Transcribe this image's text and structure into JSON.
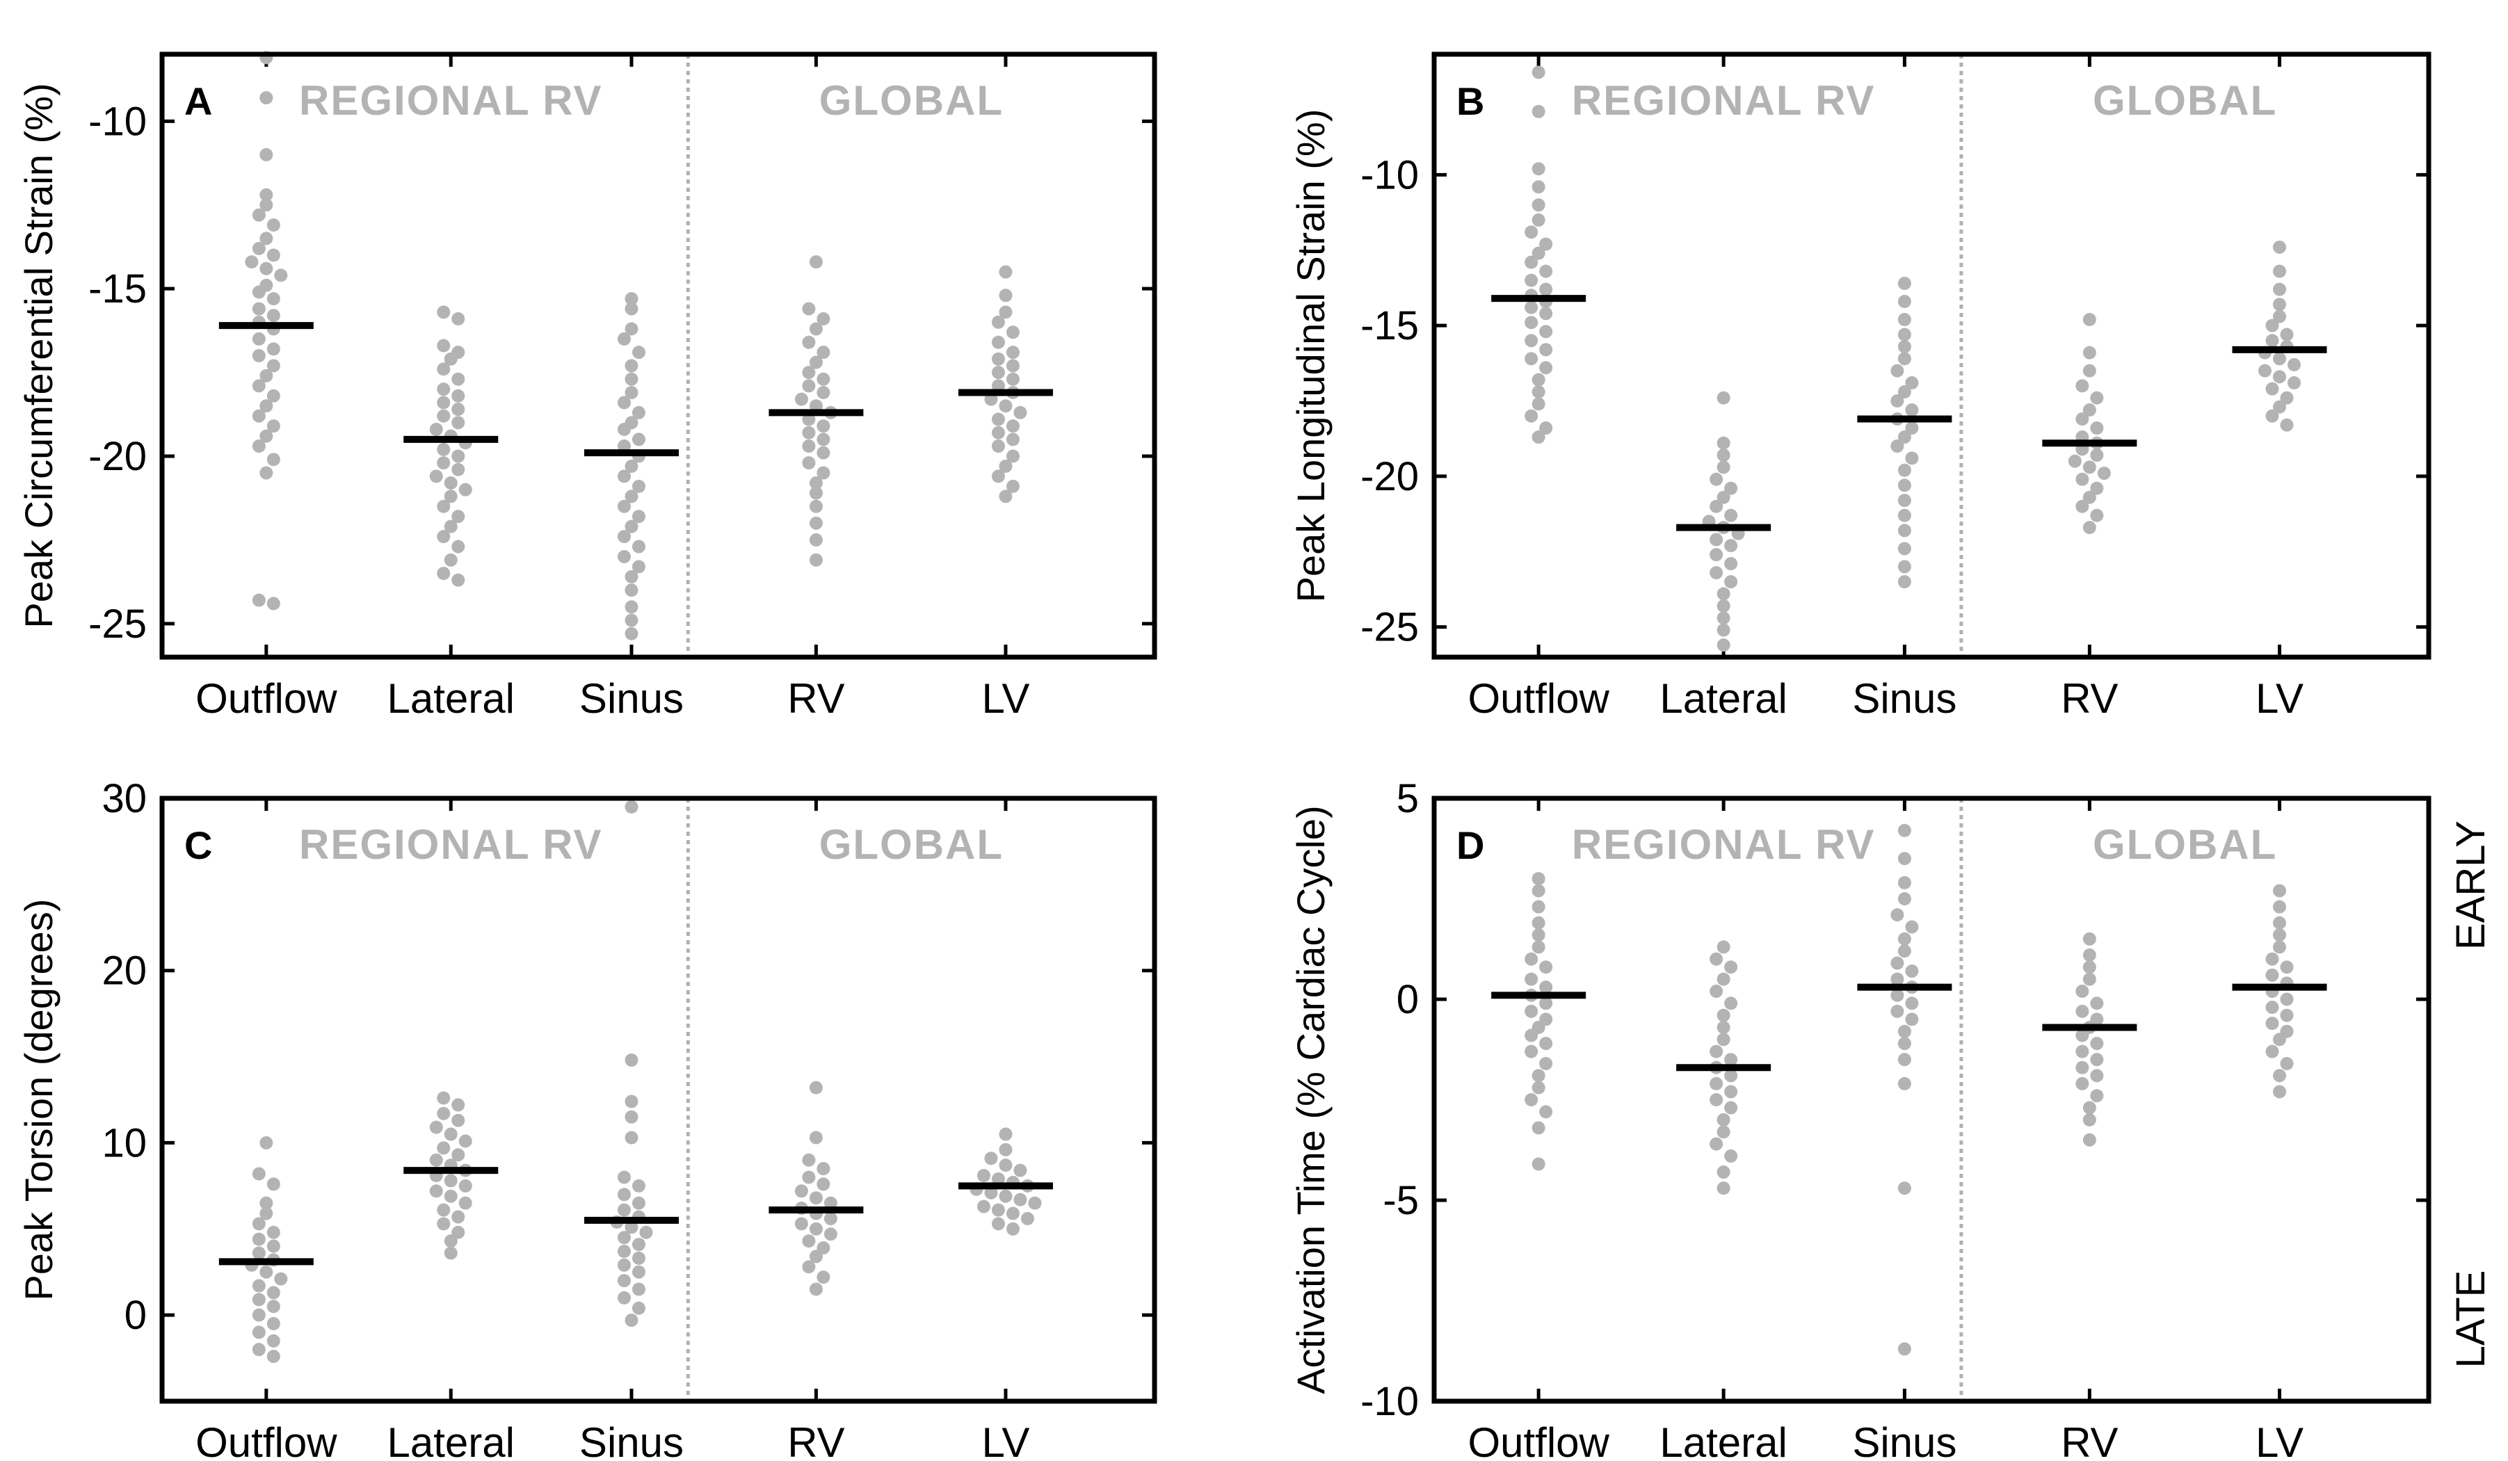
{
  "chart_data": [
    {
      "type": "scatter",
      "panel": "A",
      "ylabel": "Peak Circumferential Strain (%)",
      "ylim": [
        -26,
        -8
      ],
      "yticks": [
        -25,
        -20,
        -15,
        -10
      ],
      "region_labels": [
        "REGIONAL RV",
        "GLOBAL"
      ],
      "categories": [
        "Outflow",
        "Lateral",
        "Sinus",
        "RV",
        "LV"
      ],
      "medians": [
        -16.1,
        -19.5,
        -19.9,
        -18.7,
        -18.1
      ],
      "series": [
        {
          "name": "Outflow",
          "values": [
            -8.1,
            -9.3,
            -11.0,
            -12.2,
            -12.5,
            -12.8,
            -13.1,
            -13.5,
            -13.8,
            -14.0,
            -14.2,
            -14.4,
            -14.6,
            -14.9,
            -15.1,
            -15.3,
            -15.6,
            -15.8,
            -16.0,
            -16.2,
            -16.5,
            -16.8,
            -17.0,
            -17.3,
            -17.6,
            -17.9,
            -18.2,
            -18.5,
            -18.8,
            -19.1,
            -19.4,
            -19.7,
            -20.1,
            -20.5,
            -24.3,
            -24.4
          ]
        },
        {
          "name": "Lateral",
          "values": [
            -15.7,
            -15.9,
            -16.7,
            -16.9,
            -17.1,
            -17.4,
            -17.7,
            -18.0,
            -18.2,
            -18.4,
            -18.6,
            -18.8,
            -19.0,
            -19.2,
            -19.4,
            -19.6,
            -19.8,
            -20.0,
            -20.2,
            -20.4,
            -20.6,
            -20.8,
            -21.0,
            -21.2,
            -21.5,
            -21.8,
            -22.1,
            -22.4,
            -22.7,
            -23.1,
            -23.5,
            -23.7
          ]
        },
        {
          "name": "Sinus",
          "values": [
            -15.3,
            -15.6,
            -16.2,
            -16.5,
            -16.9,
            -17.3,
            -17.7,
            -18.1,
            -18.4,
            -18.7,
            -19.0,
            -19.2,
            -19.5,
            -19.7,
            -20.0,
            -20.3,
            -20.6,
            -20.9,
            -21.2,
            -21.5,
            -21.8,
            -22.1,
            -22.4,
            -22.7,
            -23.0,
            -23.3,
            -23.6,
            -24.0,
            -24.5,
            -24.9,
            -25.3
          ]
        },
        {
          "name": "RV",
          "values": [
            -14.2,
            -15.6,
            -15.9,
            -16.2,
            -16.6,
            -16.9,
            -17.2,
            -17.5,
            -17.7,
            -17.9,
            -18.1,
            -18.3,
            -18.5,
            -18.7,
            -18.9,
            -19.1,
            -19.3,
            -19.5,
            -19.7,
            -19.9,
            -20.2,
            -20.5,
            -20.8,
            -21.1,
            -21.5,
            -22.0,
            -22.5,
            -23.1
          ]
        },
        {
          "name": "LV",
          "values": [
            -14.5,
            -15.2,
            -15.7,
            -16.0,
            -16.3,
            -16.6,
            -16.9,
            -17.1,
            -17.3,
            -17.5,
            -17.7,
            -17.9,
            -18.1,
            -18.3,
            -18.5,
            -18.7,
            -18.9,
            -19.1,
            -19.3,
            -19.5,
            -19.7,
            -20.0,
            -20.3,
            -20.6,
            -20.9,
            -21.2
          ]
        }
      ]
    },
    {
      "type": "scatter",
      "panel": "B",
      "ylabel": "Peak Longitudinal Strain (%)",
      "ylim": [
        -26,
        -6
      ],
      "yticks": [
        -25,
        -20,
        -15,
        -10
      ],
      "region_labels": [
        "REGIONAL RV",
        "GLOBAL"
      ],
      "categories": [
        "Outflow",
        "Lateral",
        "Sinus",
        "RV",
        "LV"
      ],
      "medians": [
        -14.1,
        -21.7,
        -18.1,
        -18.9,
        -15.8
      ],
      "series": [
        {
          "name": "Outflow",
          "values": [
            -6.6,
            -7.9,
            -9.8,
            -10.4,
            -11.0,
            -11.5,
            -11.9,
            -12.3,
            -12.6,
            -12.9,
            -13.2,
            -13.5,
            -13.8,
            -14.0,
            -14.2,
            -14.4,
            -14.6,
            -14.9,
            -15.2,
            -15.5,
            -15.8,
            -16.1,
            -16.4,
            -16.8,
            -17.2,
            -17.6,
            -18.0,
            -18.4,
            -18.7
          ]
        },
        {
          "name": "Lateral",
          "values": [
            -17.4,
            -18.9,
            -19.3,
            -19.7,
            -20.1,
            -20.4,
            -20.7,
            -21.0,
            -21.3,
            -21.5,
            -21.7,
            -21.9,
            -22.1,
            -22.3,
            -22.6,
            -22.9,
            -23.2,
            -23.5,
            -23.9,
            -24.3,
            -24.7,
            -25.1,
            -25.6
          ]
        },
        {
          "name": "Sinus",
          "values": [
            -13.6,
            -14.2,
            -14.8,
            -15.3,
            -15.7,
            -16.1,
            -16.5,
            -16.9,
            -17.2,
            -17.5,
            -17.8,
            -18.1,
            -18.4,
            -18.7,
            -19.0,
            -19.4,
            -19.8,
            -20.3,
            -20.8,
            -21.3,
            -21.8,
            -22.4,
            -23.0,
            -23.5
          ]
        },
        {
          "name": "RV",
          "values": [
            -14.8,
            -15.9,
            -16.5,
            -17.0,
            -17.4,
            -17.8,
            -18.1,
            -18.4,
            -18.7,
            -18.9,
            -19.1,
            -19.3,
            -19.5,
            -19.7,
            -19.9,
            -20.1,
            -20.4,
            -20.7,
            -21.0,
            -21.3,
            -21.7
          ]
        },
        {
          "name": "LV",
          "values": [
            -12.4,
            -13.2,
            -13.8,
            -14.3,
            -14.7,
            -15.0,
            -15.3,
            -15.5,
            -15.7,
            -15.9,
            -16.1,
            -16.3,
            -16.5,
            -16.7,
            -16.9,
            -17.1,
            -17.4,
            -17.7,
            -18.0,
            -18.3
          ]
        }
      ]
    },
    {
      "type": "scatter",
      "panel": "C",
      "ylabel": "Peak Torsion (degrees)",
      "ylim": [
        -5,
        30
      ],
      "yticks": [
        0,
        10,
        20,
        30
      ],
      "region_labels": [
        "REGIONAL RV",
        "GLOBAL"
      ],
      "categories": [
        "Outflow",
        "Lateral",
        "Sinus",
        "RV",
        "LV"
      ],
      "medians": [
        3.1,
        8.4,
        5.5,
        6.1,
        7.5
      ],
      "series": [
        {
          "name": "Outflow",
          "values": [
            10.0,
            8.2,
            7.6,
            6.5,
            5.9,
            5.3,
            4.8,
            4.4,
            4.0,
            3.6,
            3.2,
            2.9,
            2.5,
            2.1,
            1.7,
            1.3,
            0.9,
            0.5,
            0.0,
            -0.5,
            -1.0,
            -1.5,
            -2.0,
            -2.4
          ]
        },
        {
          "name": "Lateral",
          "values": [
            12.6,
            12.2,
            11.7,
            11.3,
            10.9,
            10.5,
            10.1,
            9.7,
            9.3,
            9.0,
            8.7,
            8.4,
            8.1,
            7.8,
            7.5,
            7.2,
            6.9,
            6.5,
            6.1,
            5.7,
            5.3,
            4.8,
            4.3,
            3.6
          ]
        },
        {
          "name": "Sinus",
          "values": [
            29.5,
            14.8,
            12.4,
            11.5,
            10.3,
            8.0,
            7.5,
            7.0,
            6.5,
            6.1,
            5.7,
            5.4,
            5.1,
            4.8,
            4.5,
            4.1,
            3.7,
            3.3,
            2.9,
            2.5,
            2.0,
            1.5,
            1.0,
            0.4,
            -0.3
          ]
        },
        {
          "name": "RV",
          "values": [
            13.2,
            10.3,
            9.0,
            8.5,
            8.0,
            7.6,
            7.2,
            6.8,
            6.5,
            6.2,
            5.9,
            5.6,
            5.3,
            5.0,
            4.7,
            4.3,
            3.9,
            3.4,
            2.8,
            2.2,
            1.5
          ]
        },
        {
          "name": "LV",
          "values": [
            10.5,
            9.6,
            9.1,
            8.7,
            8.4,
            8.1,
            7.9,
            7.7,
            7.5,
            7.3,
            7.1,
            6.9,
            6.7,
            6.5,
            6.3,
            6.1,
            5.9,
            5.6,
            5.3,
            5.0
          ]
        }
      ]
    },
    {
      "type": "scatter",
      "panel": "D",
      "ylabel": "Activation Time (% Cardiac Cycle)",
      "ylim": [
        -10,
        5
      ],
      "yticks": [
        -10,
        -5,
        0,
        5
      ],
      "region_labels": [
        "REGIONAL RV",
        "GLOBAL"
      ],
      "side_labels": {
        "top": "EARLY",
        "bottom": "LATE"
      },
      "categories": [
        "Outflow",
        "Lateral",
        "Sinus",
        "RV",
        "LV"
      ],
      "medians": [
        0.1,
        -1.7,
        0.3,
        -0.7,
        0.3
      ],
      "series": [
        {
          "name": "Outflow",
          "values": [
            3.0,
            2.7,
            2.3,
            1.9,
            1.6,
            1.3,
            1.0,
            0.8,
            0.5,
            0.3,
            0.1,
            -0.1,
            -0.3,
            -0.5,
            -0.7,
            -0.9,
            -1.1,
            -1.3,
            -1.6,
            -1.9,
            -2.2,
            -2.5,
            -2.8,
            -3.2,
            -4.1
          ]
        },
        {
          "name": "Lateral",
          "values": [
            1.3,
            1.0,
            0.8,
            0.5,
            0.2,
            -0.1,
            -0.4,
            -0.7,
            -1.0,
            -1.3,
            -1.5,
            -1.7,
            -1.9,
            -2.1,
            -2.3,
            -2.5,
            -2.7,
            -3.0,
            -3.3,
            -3.6,
            -3.9,
            -4.3,
            -4.7
          ]
        },
        {
          "name": "Sinus",
          "values": [
            4.2,
            3.5,
            2.9,
            2.5,
            2.1,
            1.8,
            1.5,
            1.2,
            0.9,
            0.7,
            0.5,
            0.3,
            0.1,
            -0.1,
            -0.3,
            -0.5,
            -0.8,
            -1.1,
            -1.5,
            -2.1,
            -4.7,
            -8.7
          ]
        },
        {
          "name": "RV",
          "values": [
            1.5,
            1.1,
            0.8,
            0.5,
            0.2,
            -0.1,
            -0.3,
            -0.5,
            -0.7,
            -0.9,
            -1.1,
            -1.3,
            -1.5,
            -1.7,
            -1.9,
            -2.1,
            -2.4,
            -2.7,
            -3.0,
            -3.5
          ]
        },
        {
          "name": "LV",
          "values": [
            2.7,
            2.3,
            1.9,
            1.6,
            1.3,
            1.0,
            0.8,
            0.6,
            0.4,
            0.2,
            0.0,
            -0.2,
            -0.4,
            -0.6,
            -0.8,
            -1.0,
            -1.3,
            -1.6,
            -1.9,
            -2.3
          ]
        }
      ]
    }
  ]
}
